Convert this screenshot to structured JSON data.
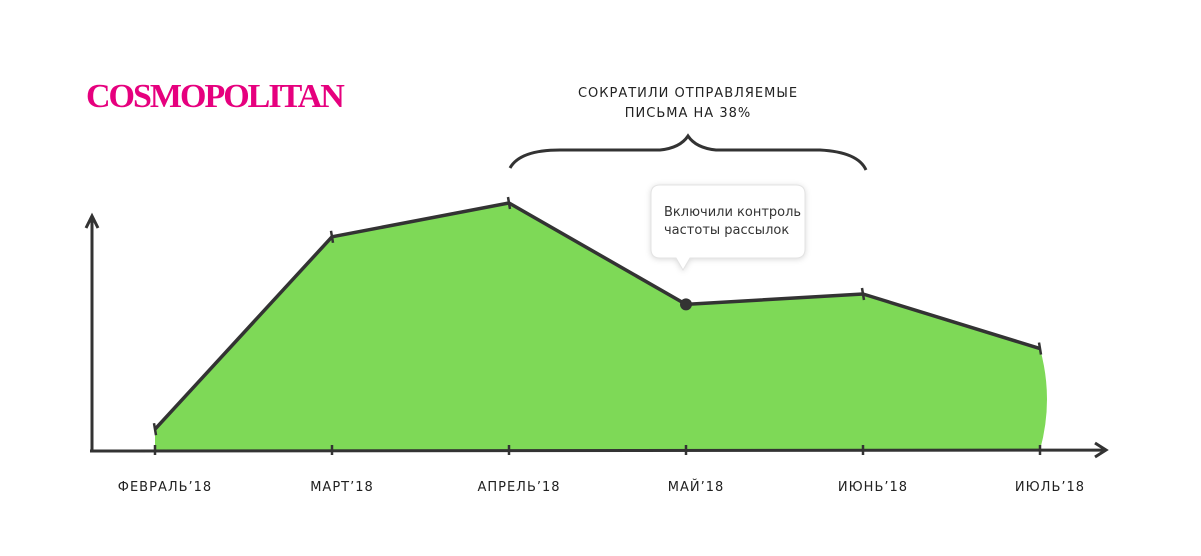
{
  "brand": "COSMOPOLITAN",
  "chart_data": {
    "type": "area",
    "categories": [
      "ФЕВРАЛЬ’18",
      "МАРТ’18",
      "АПРЕЛЬ’18",
      "МАЙ’18",
      "ИЮНЬ’18",
      "ИЮЛЬ’18"
    ],
    "values": [
      8,
      82,
      95,
      56,
      60,
      39
    ],
    "ylim": [
      0,
      100
    ],
    "color": "#7ed957",
    "line_color": "#333333",
    "marker_index": 3,
    "annotation": [
      "СОКРАТИЛИ ОТПРАВЛЯЕМЫЕ",
      "ПИСЬМА НА 38%"
    ],
    "callout": [
      "Включили контроль",
      "частоты рассылок"
    ]
  }
}
